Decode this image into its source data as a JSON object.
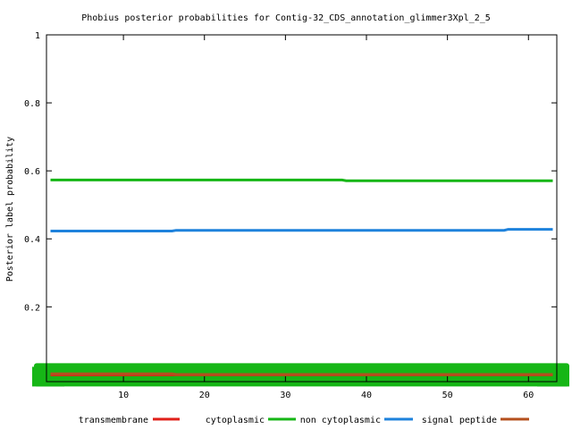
{
  "chart_data": {
    "type": "line",
    "title": "Phobius posterior probabilities for Contig-32_CDS_annotation_glimmer3Xpl_2_5",
    "xlabel": "",
    "ylabel": "Posterior label probability",
    "xlim": [
      0.5,
      63.5
    ],
    "ylim": [
      -0.02,
      1.0
    ],
    "x_ticks": [
      10,
      20,
      30,
      40,
      50,
      60
    ],
    "y_ticks": [
      0.2,
      0.4,
      0.6,
      0.8,
      1
    ],
    "y_tick_labels": [
      "0.2",
      "0.4",
      "0.6",
      "0.8",
      "1"
    ],
    "grid": false,
    "legend_position": "bottom",
    "series": [
      {
        "name": "transmembrane",
        "color": "#e0201a",
        "points": [
          [
            1,
            0.0
          ],
          [
            63,
            0.0
          ]
        ]
      },
      {
        "name": "cytoplasmic",
        "color": "#16b616",
        "points": [
          [
            1,
            0.0
          ],
          [
            63,
            0.0
          ]
        ]
      },
      {
        "name": "non cytoplasmic",
        "color": "#16b616",
        "points": [
          [
            1,
            0.573
          ],
          [
            37,
            0.573
          ],
          [
            37.5,
            0.571
          ],
          [
            63,
            0.571
          ]
        ]
      },
      {
        "name": "signal peptide",
        "color": "#1e82dc",
        "points": [
          [
            1,
            0.423
          ],
          [
            16,
            0.423
          ],
          [
            16.5,
            0.425
          ],
          [
            57,
            0.425
          ],
          [
            57.5,
            0.428
          ],
          [
            63,
            0.428
          ]
        ]
      },
      {
        "name": "",
        "color": "#b4501e",
        "points": [
          [
            1,
            0.003
          ],
          [
            16,
            0.003
          ],
          [
            16.5,
            0.001
          ],
          [
            63,
            0.001
          ]
        ]
      }
    ]
  }
}
